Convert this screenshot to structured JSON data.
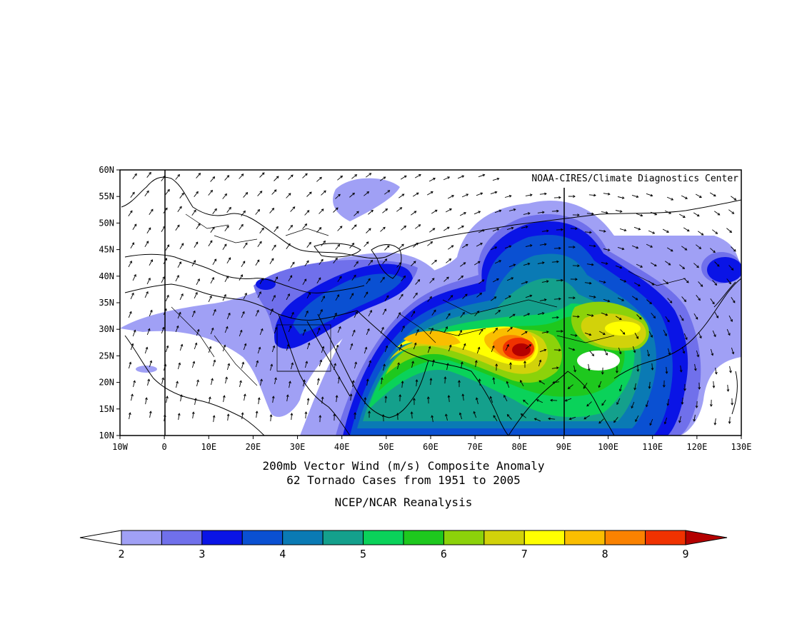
{
  "credit": "NOAA-CIRES/Climate Diagnostics Center",
  "title_line1": "200mb Vector Wind (m/s) Composite Anomaly",
  "title_line2": "62 Tornado Cases from 1951 to 2005",
  "source": "NCEP/NCAR Reanalysis",
  "lon_ticks": [
    "10W",
    "0",
    "10E",
    "20E",
    "30E",
    "40E",
    "50E",
    "60E",
    "70E",
    "80E",
    "90E",
    "100E",
    "110E",
    "120E",
    "130E"
  ],
  "lat_ticks": [
    "60N",
    "55N",
    "50N",
    "45N",
    "40N",
    "35N",
    "30N",
    "25N",
    "20N",
    "15N",
    "10N"
  ],
  "colorbar": {
    "labels": [
      "2",
      "3",
      "4",
      "5",
      "6",
      "7",
      "8",
      "9"
    ],
    "colors": [
      "#ffffff",
      "#a0a0f5",
      "#7070eb",
      "#0a14e6",
      "#0a50d2",
      "#0a7ab4",
      "#14a08c",
      "#0ad25a",
      "#1ec81e",
      "#8cd20a",
      "#d2d20a",
      "#ffff00",
      "#fabe00",
      "#fa8200",
      "#f03200",
      "#b40000"
    ]
  },
  "wind_field": {
    "max_anomaly_region": "Northern India near 80E 27N",
    "secondary_maximum": "Southern China near 103E 30N"
  }
}
